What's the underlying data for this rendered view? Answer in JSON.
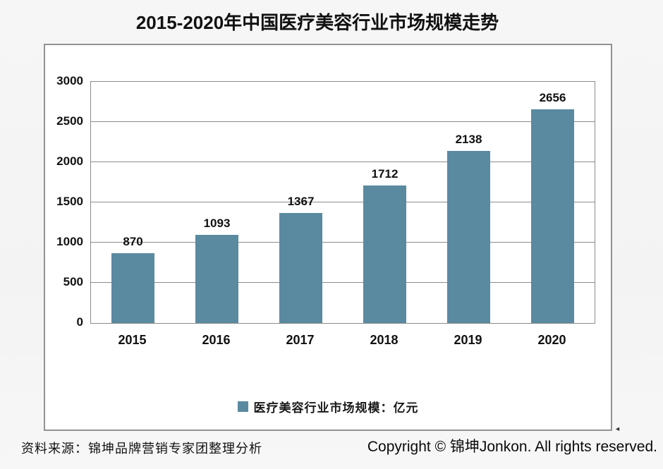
{
  "page": {
    "title": "2015-2020年中国医疗美容行业市场规模走势",
    "source_note": "资料来源：锦坤品牌营销专家团整理分析",
    "copyright": "Copyright © 锦坤Jonkon. All rights reserved.",
    "resize_marker_glyph": "◄"
  },
  "chart_data": {
    "type": "bar",
    "title": "2015-2020年中国医疗美容行业市场规模走势",
    "categories": [
      "2015",
      "2016",
      "2017",
      "2018",
      "2019",
      "2020"
    ],
    "values": [
      870,
      1093,
      1367,
      1712,
      2138,
      2656
    ],
    "xlabel": "",
    "ylabel": "",
    "ylim": [
      0,
      3000
    ],
    "yticks": [
      0,
      500,
      1000,
      1500,
      2000,
      2500,
      3000
    ],
    "grid": true,
    "legend": "医疗美容行业市场规模：亿元",
    "legend_position": "bottom",
    "bar_color": "#5A8AA0",
    "value_labels": true,
    "unit": "亿元"
  },
  "colors": {
    "bar": "#5A8AA0",
    "gridline": "#8c8c8c",
    "panel_border": "#929292",
    "text": "#111111",
    "background": "#f4f4f4"
  }
}
